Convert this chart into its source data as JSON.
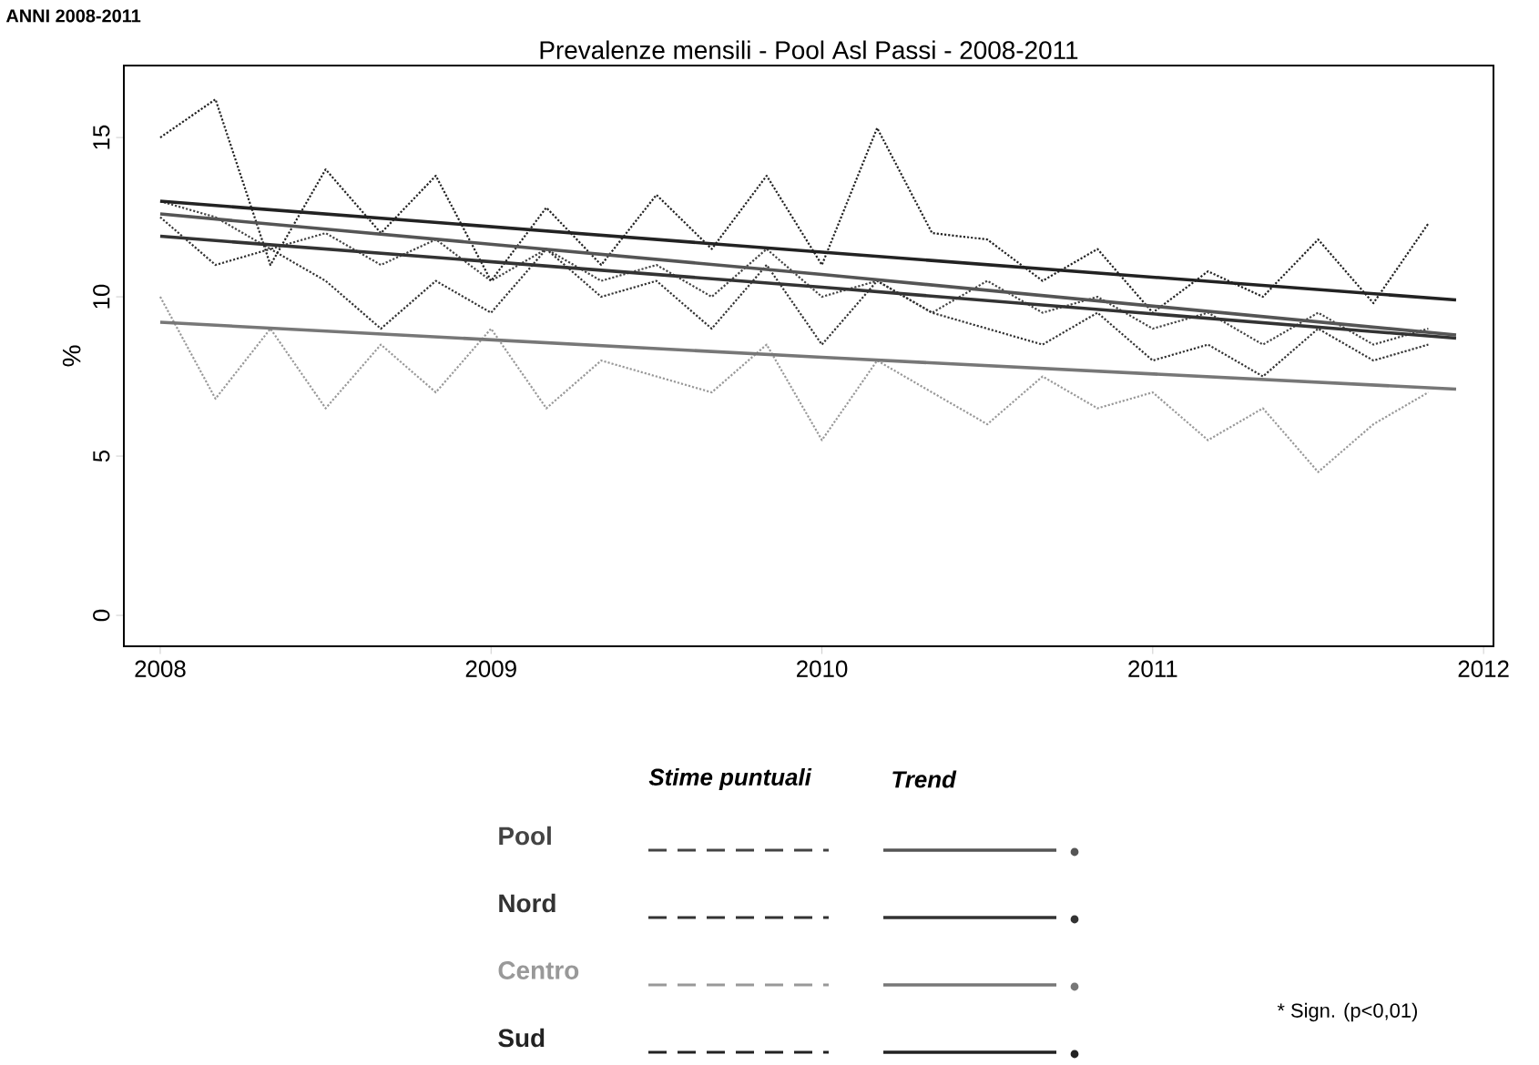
{
  "chart_data": {
    "type": "line",
    "title": "Prevalenze mensili - Pool Asl Passi - 2008-2011",
    "ylabel": "%",
    "x": [
      2008.0,
      2008.167,
      2008.333,
      2008.5,
      2008.667,
      2008.833,
      2009.0,
      2009.167,
      2009.333,
      2009.5,
      2009.667,
      2009.833,
      2010.0,
      2010.167,
      2010.333,
      2010.5,
      2010.667,
      2010.833,
      2011.0,
      2011.167,
      2011.333,
      2011.5,
      2011.667,
      2011.833
    ],
    "series": [
      {
        "name": "Pool",
        "color": "#444444",
        "line_style": "dotted",
        "values": [
          13.0,
          12.5,
          11.5,
          12.0,
          11.0,
          11.8,
          10.5,
          11.5,
          10.5,
          11.0,
          10.0,
          11.5,
          10.0,
          10.5,
          9.5,
          10.5,
          9.5,
          10.0,
          9.0,
          9.5,
          8.5,
          9.5,
          8.5,
          9.0
        ]
      },
      {
        "name": "Nord",
        "color": "#333333",
        "line_style": "dotted",
        "values": [
          12.5,
          11.0,
          11.5,
          10.5,
          9.0,
          10.5,
          9.5,
          11.5,
          10.0,
          10.5,
          9.0,
          11.0,
          8.5,
          10.5,
          9.5,
          9.0,
          8.5,
          9.5,
          8.0,
          8.5,
          7.5,
          9.0,
          8.0,
          8.5
        ]
      },
      {
        "name": "Centro",
        "color": "#999999",
        "line_style": "dotted",
        "values": [
          10.0,
          6.8,
          9.0,
          6.5,
          8.5,
          7.0,
          9.0,
          6.5,
          8.0,
          7.5,
          7.0,
          8.5,
          5.5,
          8.0,
          7.0,
          6.0,
          7.5,
          6.5,
          7.0,
          5.5,
          6.5,
          4.5,
          6.0,
          7.0
        ]
      },
      {
        "name": "Sud",
        "color": "#222222",
        "line_style": "dotted",
        "values": [
          15.0,
          16.2,
          11.0,
          14.0,
          12.0,
          13.8,
          10.5,
          12.8,
          11.0,
          13.2,
          11.5,
          13.8,
          11.0,
          15.3,
          12.0,
          11.8,
          10.5,
          11.5,
          9.5,
          10.8,
          10.0,
          11.8,
          9.8,
          12.3
        ]
      },
      {
        "color": "#555555",
        "line_style": "solid",
        "x": [
          2008.0,
          2010.0,
          2011.917
        ],
        "values": [
          12.6,
          10.7,
          8.8
        ]
      },
      {
        "color": "#333333",
        "line_style": "solid",
        "x": [
          2008.0,
          2010.0,
          2011.917
        ],
        "values": [
          11.9,
          10.3,
          8.7
        ]
      },
      {
        "color": "#777777",
        "line_style": "solid",
        "x": [
          2008.0,
          2010.0,
          2011.917
        ],
        "values": [
          9.2,
          8.1,
          7.1
        ]
      },
      {
        "color": "#222222",
        "line_style": "solid",
        "x": [
          2008.0,
          2010.0,
          2011.917
        ],
        "values": [
          13.0,
          11.4,
          9.9
        ]
      }
    ],
    "xlim": [
      2007.89,
      2012.03
    ],
    "ylim": [
      -0.97,
      17.26
    ],
    "xticks": [
      2008,
      2009,
      2010,
      2011,
      2012
    ],
    "yticks": [
      0,
      5,
      10,
      15
    ],
    "grid": false,
    "legend": "bottom",
    "annotations": [
      "ANNI 2008-2011",
      "Stime puntuali",
      "Trend",
      "* Sign. (p<0,01)"
    ]
  }
}
